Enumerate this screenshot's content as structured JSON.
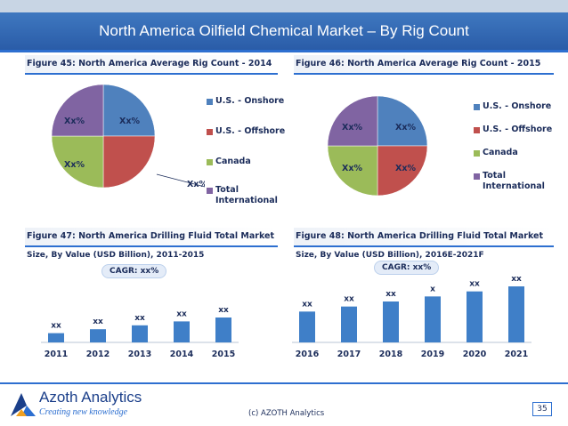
{
  "slide_title": "North America Oilfield Chemical Market – By Rig Count",
  "fig45": {
    "title": "Figure 45: North America Average Rig Count - 2014"
  },
  "fig46": {
    "title": "Figure 46: North America Average Rig Count - 2015"
  },
  "fig47": {
    "title": "Figure 47: North America Drilling Fluid Total Market",
    "subtitle": "Size, By Value (USD Billion), 2011-2015",
    "cagr": "CAGR: xx%"
  },
  "fig48": {
    "title": "Figure 48: North America Drilling Fluid Total Market",
    "subtitle": "Size, By Value (USD Billion), 2016E-2021F",
    "cagr": "CAGR: xx%"
  },
  "colors": {
    "onshore": "#4f81bd",
    "offshore": "#c0504d",
    "canada": "#9bbb59",
    "intl": "#8064a2",
    "bar": "#3f7fc8"
  },
  "chart_data": [
    {
      "type": "pie",
      "title": "Figure 45: North America Average Rig Count - 2014",
      "categories": [
        "U.S. - Onshore",
        "U.S. - Offshore",
        "Canada",
        "Total International"
      ],
      "values": [
        25,
        25,
        25,
        25
      ],
      "labels": [
        "Xx%",
        "Xx%",
        "Xx%",
        "Xx%"
      ],
      "legend": "right"
    },
    {
      "type": "pie",
      "title": "Figure 46: North America Average Rig Count - 2015",
      "categories": [
        "U.S. - Onshore",
        "U.S. - Offshore",
        "Canada",
        "Total International"
      ],
      "values": [
        25,
        25,
        25,
        25
      ],
      "labels": [
        "Xx%",
        "Xx%",
        "Xx%",
        "Xx%"
      ],
      "legend": "right"
    },
    {
      "type": "bar",
      "title": "Figure 47: North America Drilling Fluid Total Market",
      "categories": [
        "2011",
        "2012",
        "2013",
        "2014",
        "2015"
      ],
      "values": [
        1,
        2,
        3,
        4,
        5
      ],
      "labels": [
        "xx",
        "xx",
        "xx",
        "xx",
        "xx"
      ]
    },
    {
      "type": "bar",
      "title": "Figure 48: North America Drilling Fluid Total Market",
      "categories": [
        "2016",
        "2017",
        "2018",
        "2019",
        "2020",
        "2021"
      ],
      "values": [
        1,
        2,
        3,
        4,
        5,
        6
      ],
      "labels": [
        "xx",
        "xx",
        "xx",
        "x",
        "xx",
        "xx"
      ]
    }
  ],
  "footer": {
    "brand": "Azoth Analytics",
    "tagline": "Creating new knowledge",
    "copyright": "(c) AZOTH Analytics",
    "page": "35"
  }
}
